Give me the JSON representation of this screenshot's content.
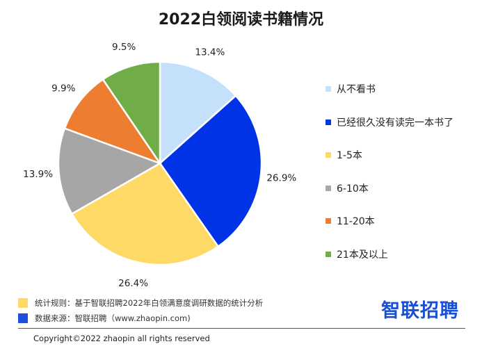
{
  "chart_data": {
    "type": "pie",
    "title": "2022白领阅读书籍情况",
    "slices": [
      {
        "label": "从不看书",
        "value": 13.4,
        "value_label": "13.4%",
        "color": "#c5e0fa"
      },
      {
        "label": "已经很久没有读完一本书了",
        "value": 26.9,
        "value_label": "26.9%",
        "color": "#0033e6"
      },
      {
        "label": "1-5本",
        "value": 26.4,
        "value_label": "26.4%",
        "color": "#ffd966"
      },
      {
        "label": "6-10本",
        "value": 13.9,
        "value_label": "13.9%",
        "color": "#a6a6a6"
      },
      {
        "label": "11-20本",
        "value": 9.9,
        "value_label": "9.9%",
        "color": "#ed7d31"
      },
      {
        "label": "21本及以上",
        "value": 9.5,
        "value_label": "9.5%",
        "color": "#70ad47"
      }
    ],
    "legend_placement": "right"
  },
  "footer": {
    "notes": [
      {
        "text": "统计规则：基于智联招聘2022年白领满意度调研数据的统计分析",
        "color": "#ffd966"
      },
      {
        "text": "数据来源：智联招聘（www.zhaopin.com)",
        "color": "#1f4fe0"
      }
    ],
    "brand": "智联招聘",
    "copyright": "Copyright©2022 zhaopin all rights reserved"
  }
}
